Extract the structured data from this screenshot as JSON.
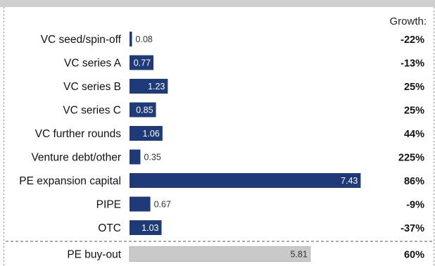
{
  "chart_data": {
    "type": "bar",
    "orientation": "horizontal",
    "growth_header": "Growth:",
    "categories": [
      "VC seed/spin-off",
      "VC series A",
      "VC series B",
      "VC series C",
      "VC further rounds",
      "Venture debt/other",
      "PE expansion capital",
      "PIPE",
      "OTC",
      "PE buy-out"
    ],
    "values": [
      0.08,
      0.77,
      1.23,
      0.85,
      1.06,
      0.35,
      7.43,
      0.67,
      1.03,
      5.81
    ],
    "value_labels": [
      "0.08",
      "0.77",
      "1.23",
      "0.85",
      "1.06",
      "0.35",
      "7.43",
      "0.67",
      "1.03",
      "5.81"
    ],
    "growth": [
      "-22%",
      "-13%",
      "25%",
      "25%",
      "44%",
      "225%",
      "86%",
      "-9%",
      "-37%",
      "60%"
    ],
    "colors": {
      "bar": "#1f3a78",
      "bar_highlight": "#c9c9c9",
      "header_bar": "#cfcfcf",
      "border": "#8a8a8a",
      "text": "#111111"
    },
    "separator_before_last": true,
    "legend": "none",
    "grid": false
  }
}
